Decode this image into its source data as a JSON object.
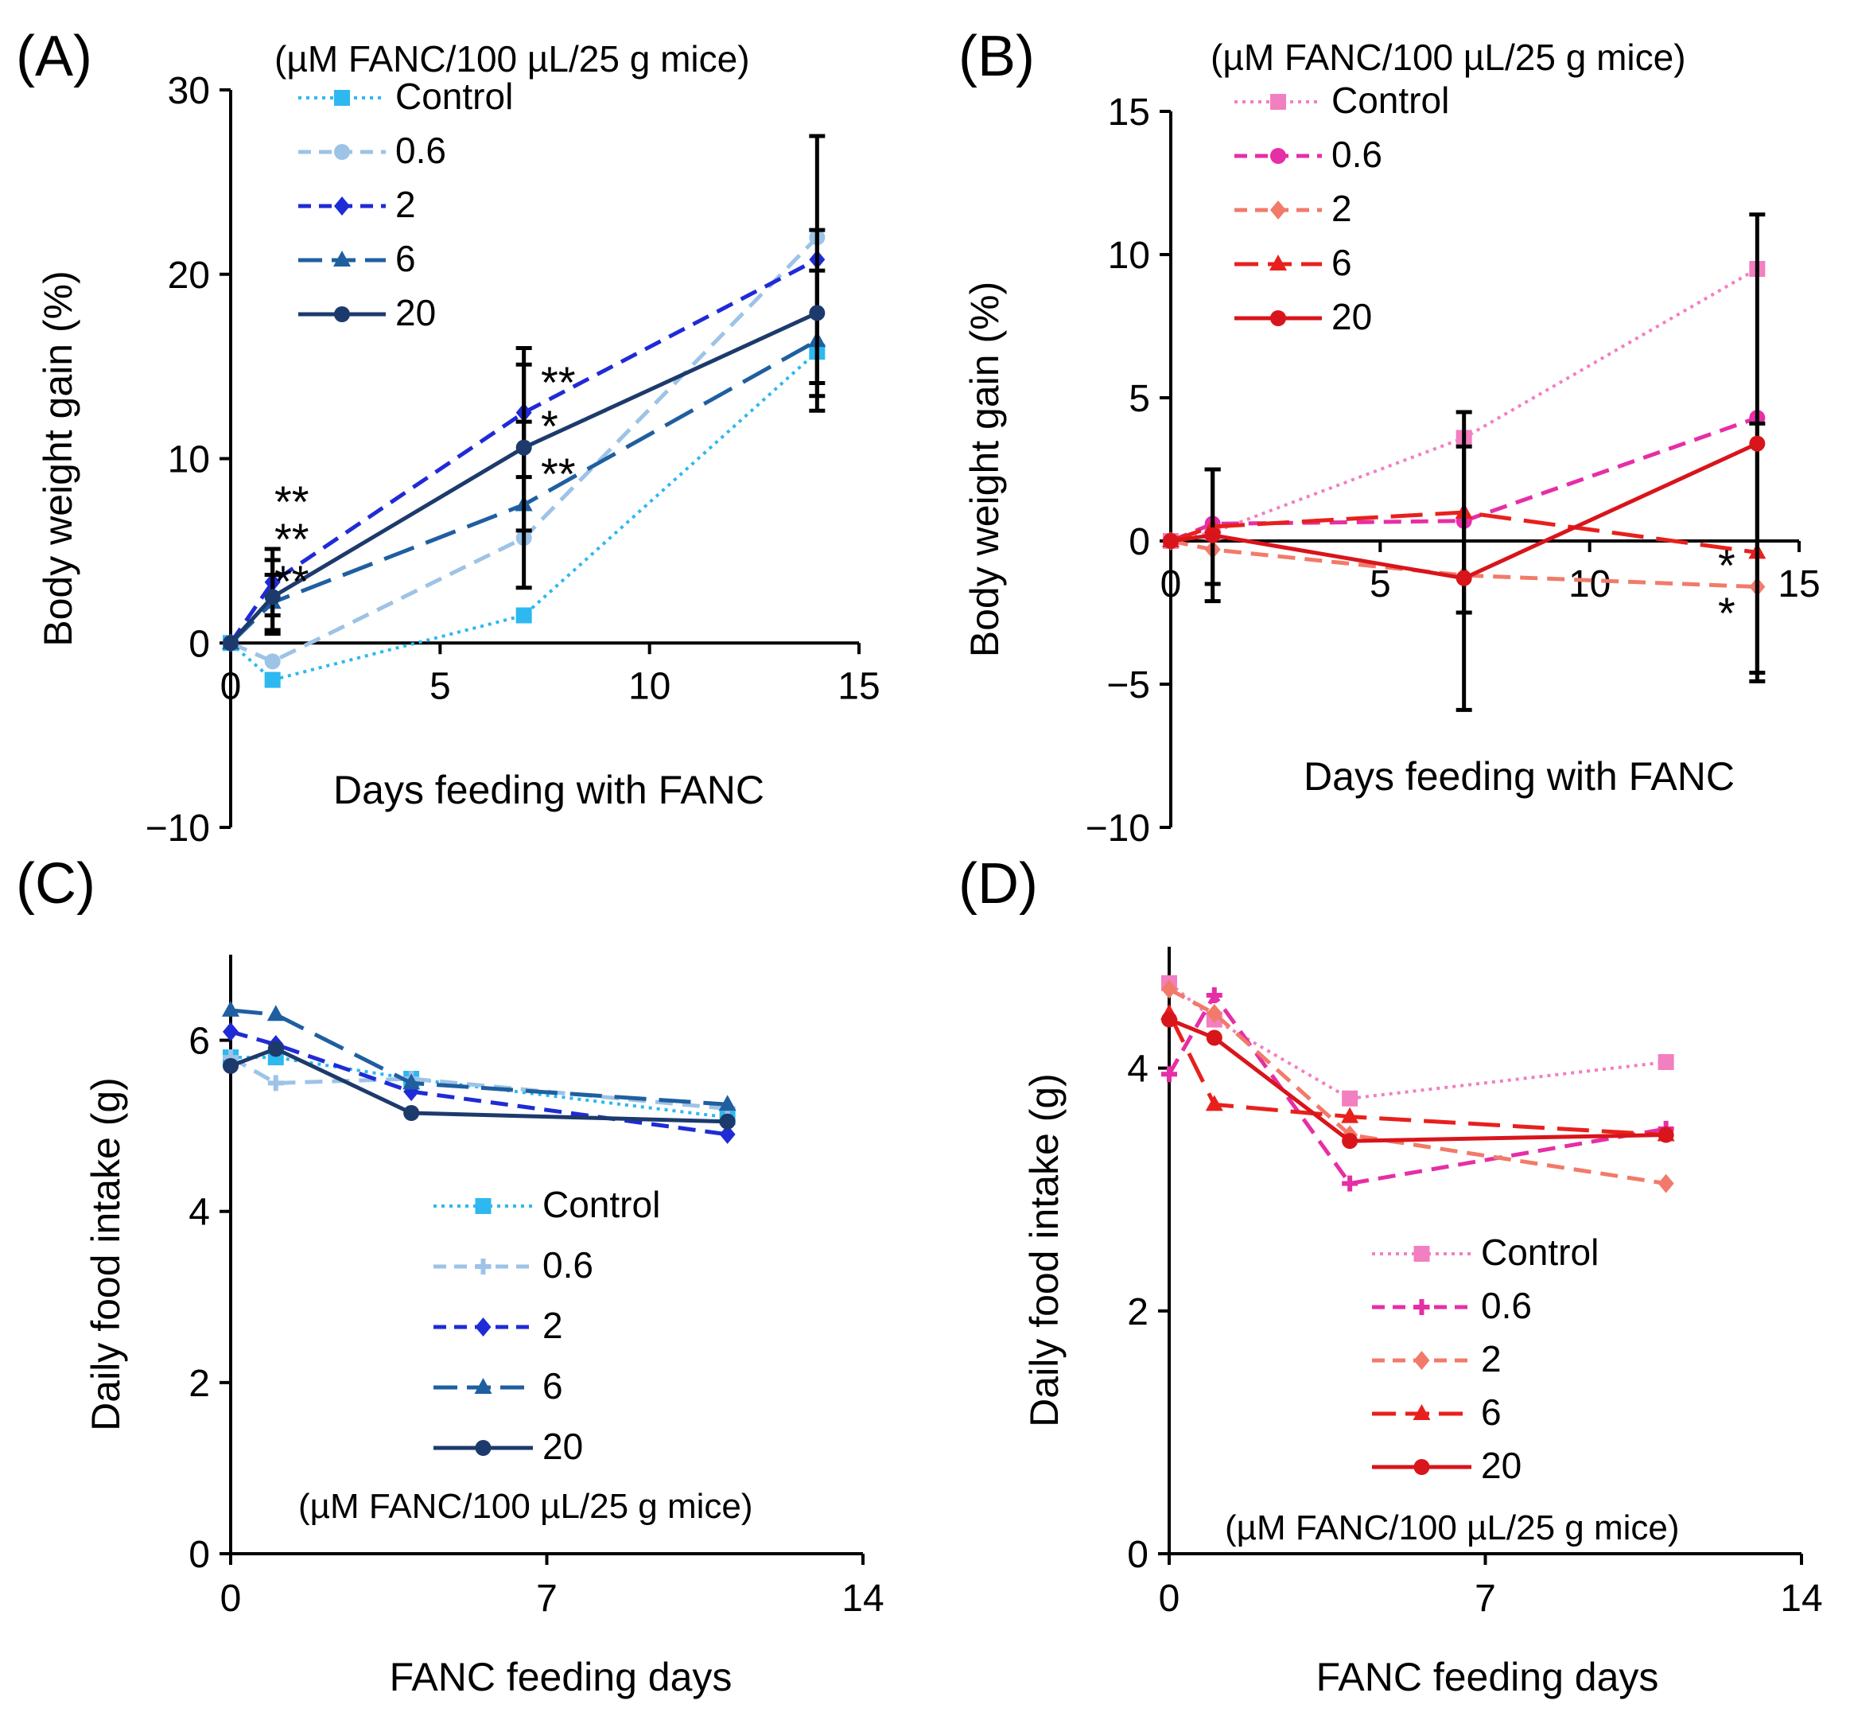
{
  "chart_data": [
    {
      "id": "A",
      "panel_label": "(A)",
      "type": "line",
      "title": "",
      "xlabel": "Days feeding with FANC",
      "ylabel": "Body weight gain (%)",
      "xlim": [
        0,
        15
      ],
      "ylim": [
        -10,
        30
      ],
      "xticks": [
        0,
        5,
        10,
        15
      ],
      "yticks": [
        -10,
        0,
        10,
        20,
        30
      ],
      "ytick_labels": [
        "−10",
        "0",
        "10",
        "20",
        "30"
      ],
      "legend_title": "(µM FANC/100 µL/25 g mice)",
      "legend_position": "top-left",
      "series": [
        {
          "name": "Control",
          "color": "#2db8f0",
          "dash": "dot",
          "marker": "square",
          "x": [
            0,
            1,
            7,
            14
          ],
          "values": [
            0,
            -2,
            1.5,
            15.8
          ],
          "err": [
            0,
            0,
            0,
            0
          ]
        },
        {
          "name": "0.6",
          "color": "#9dc3e6",
          "dash": "dash",
          "marker": "circle",
          "x": [
            0,
            1,
            7,
            14
          ],
          "values": [
            0,
            -1,
            5.7,
            22
          ],
          "err": [
            0,
            0,
            0,
            0
          ]
        },
        {
          "name": "2",
          "color": "#1f2bd6",
          "dash": "dash",
          "marker": "diamond",
          "x": [
            0,
            1,
            7,
            14
          ],
          "values": [
            0,
            3.3,
            12.5,
            20.8
          ],
          "err": [
            0,
            1.8,
            3.5,
            6.7
          ]
        },
        {
          "name": "6",
          "color": "#1f5fa0",
          "dash": "longdash",
          "marker": "triangle",
          "x": [
            0,
            1,
            7,
            14
          ],
          "values": [
            0,
            2.2,
            7.5,
            16.4
          ],
          "err": [
            0,
            1.5,
            4.5,
            3.8
          ]
        },
        {
          "name": "20",
          "color": "#1d3a6c",
          "dash": "solid",
          "marker": "circle",
          "x": [
            0,
            1,
            7,
            14
          ],
          "values": [
            0,
            2.5,
            10.6,
            17.9
          ],
          "err": [
            0,
            2.0,
            4.5,
            4.5
          ]
        }
      ],
      "annotations": [
        "**",
        "**",
        "**",
        "**",
        "*",
        "**"
      ]
    },
    {
      "id": "B",
      "panel_label": "(B)",
      "type": "line",
      "title": "",
      "xlabel": "Days feeding with FANC",
      "ylabel": "Body weight gain (%)",
      "xlim": [
        0,
        15
      ],
      "ylim": [
        -10,
        15
      ],
      "xticks": [
        0,
        5,
        10,
        15
      ],
      "yticks": [
        -10,
        -5,
        0,
        5,
        10,
        15
      ],
      "ytick_labels": [
        "−10",
        "−5",
        "0",
        "5",
        "10",
        "15"
      ],
      "legend_title": "(µM FANC/100 µL/25 g mice)",
      "legend_position": "top-left",
      "series": [
        {
          "name": "Control",
          "color": "#f27fc0",
          "dash": "dot",
          "marker": "square",
          "x": [
            0,
            1,
            7,
            14
          ],
          "values": [
            0,
            0.3,
            3.6,
            9.5
          ],
          "err": [
            0,
            0,
            0,
            0
          ]
        },
        {
          "name": "0.6",
          "color": "#e62ea6",
          "dash": "dash",
          "marker": "circle",
          "x": [
            0,
            1,
            7,
            14
          ],
          "values": [
            0,
            0.6,
            0.7,
            4.3
          ],
          "err": [
            0,
            0,
            0,
            0
          ]
        },
        {
          "name": "2",
          "color": "#f27a6a",
          "dash": "dash",
          "marker": "diamond",
          "x": [
            0,
            1,
            7,
            14
          ],
          "values": [
            0,
            -0.3,
            -1.2,
            -1.6
          ],
          "err": [
            0,
            0,
            0,
            0
          ]
        },
        {
          "name": "6",
          "color": "#e8201d",
          "dash": "longdash",
          "marker": "triangle",
          "x": [
            0,
            1,
            7,
            14
          ],
          "values": [
            0,
            0.5,
            1.0,
            -0.4
          ],
          "err": [
            0,
            2.0,
            3.5,
            4.5
          ]
        },
        {
          "name": "20",
          "color": "#d8151b",
          "dash": "solid",
          "marker": "circle",
          "x": [
            0,
            1,
            7,
            14
          ],
          "values": [
            0,
            0.2,
            -1.3,
            3.4
          ],
          "err": [
            0,
            2.3,
            4.6,
            8.0
          ]
        }
      ],
      "annotations": [
        "*",
        "*"
      ]
    },
    {
      "id": "C",
      "panel_label": "(C)",
      "type": "line",
      "title": "",
      "xlabel": "FANC feeding days",
      "ylabel": "Daily food intake (g)",
      "xlim": [
        0,
        14
      ],
      "ylim": [
        0,
        7
      ],
      "xticks": [
        0,
        7,
        14
      ],
      "yticks": [
        0,
        2,
        4,
        6
      ],
      "ytick_labels": [
        "0",
        "2",
        "4",
        "6"
      ],
      "legend_title": "(µM FANC/100 µL/25 g mice)",
      "legend_position": "bottom-center",
      "series": [
        {
          "name": "Control",
          "color": "#2db8f0",
          "dash": "dot",
          "marker": "square",
          "x": [
            0,
            1,
            4,
            11
          ],
          "values": [
            5.8,
            5.8,
            5.55,
            5.1
          ],
          "err": [
            0,
            0,
            0,
            0
          ]
        },
        {
          "name": "0.6",
          "color": "#9dc3e6",
          "dash": "dash",
          "marker": "plus",
          "x": [
            0,
            1,
            4,
            11
          ],
          "values": [
            5.8,
            5.5,
            5.55,
            5.2
          ],
          "err": [
            0,
            0,
            0,
            0
          ]
        },
        {
          "name": "2",
          "color": "#1f2bd6",
          "dash": "dash",
          "marker": "diamond",
          "x": [
            0,
            1,
            4,
            11
          ],
          "values": [
            6.1,
            5.95,
            5.4,
            4.9
          ],
          "err": [
            0,
            0,
            0,
            0
          ]
        },
        {
          "name": "6",
          "color": "#1f5fa0",
          "dash": "longdash",
          "marker": "triangle",
          "x": [
            0,
            1,
            4,
            11
          ],
          "values": [
            6.35,
            6.3,
            5.5,
            5.25
          ],
          "err": [
            0,
            0,
            0,
            0
          ]
        },
        {
          "name": "20",
          "color": "#1d3a6c",
          "dash": "solid",
          "marker": "circle",
          "x": [
            0,
            1,
            4,
            11
          ],
          "values": [
            5.7,
            5.9,
            5.15,
            5.05
          ],
          "err": [
            0,
            0,
            0,
            0
          ]
        }
      ],
      "annotations": []
    },
    {
      "id": "D",
      "panel_label": "(D)",
      "type": "line",
      "title": "",
      "xlabel": "FANC feeding days",
      "ylabel": "Daily food intake (g)",
      "xlim": [
        0,
        14
      ],
      "ylim": [
        0,
        5
      ],
      "xticks": [
        0,
        7,
        14
      ],
      "yticks": [
        0,
        2,
        4
      ],
      "ytick_labels": [
        "0",
        "2",
        "4"
      ],
      "legend_title": "(µM FANC/100 µL/25 g mice)",
      "legend_position": "bottom-center",
      "series": [
        {
          "name": "Control",
          "color": "#f27fc0",
          "dash": "dot",
          "marker": "square",
          "x": [
            0,
            1,
            4,
            11
          ],
          "values": [
            4.7,
            4.4,
            3.75,
            4.05
          ],
          "err": [
            0,
            0,
            0,
            0
          ]
        },
        {
          "name": "0.6",
          "color": "#e62ea6",
          "dash": "dash",
          "marker": "plus",
          "x": [
            0,
            1,
            4,
            11
          ],
          "values": [
            3.95,
            4.6,
            3.05,
            3.5
          ],
          "err": [
            0,
            0,
            0,
            0
          ]
        },
        {
          "name": "2",
          "color": "#f27a6a",
          "dash": "dash",
          "marker": "diamond",
          "x": [
            0,
            1,
            4,
            11
          ],
          "values": [
            4.65,
            4.45,
            3.45,
            3.05
          ],
          "err": [
            0,
            0,
            0,
            0
          ]
        },
        {
          "name": "6",
          "color": "#e8201d",
          "dash": "longdash",
          "marker": "triangle",
          "x": [
            0,
            1,
            4,
            11
          ],
          "values": [
            4.45,
            3.7,
            3.6,
            3.45
          ],
          "err": [
            0,
            0,
            0,
            0
          ]
        },
        {
          "name": "20",
          "color": "#d8151b",
          "dash": "solid",
          "marker": "circle",
          "x": [
            0,
            1,
            4,
            11
          ],
          "values": [
            4.4,
            4.25,
            3.4,
            3.45
          ],
          "err": [
            0,
            0,
            0,
            0
          ]
        }
      ],
      "annotations": []
    }
  ]
}
